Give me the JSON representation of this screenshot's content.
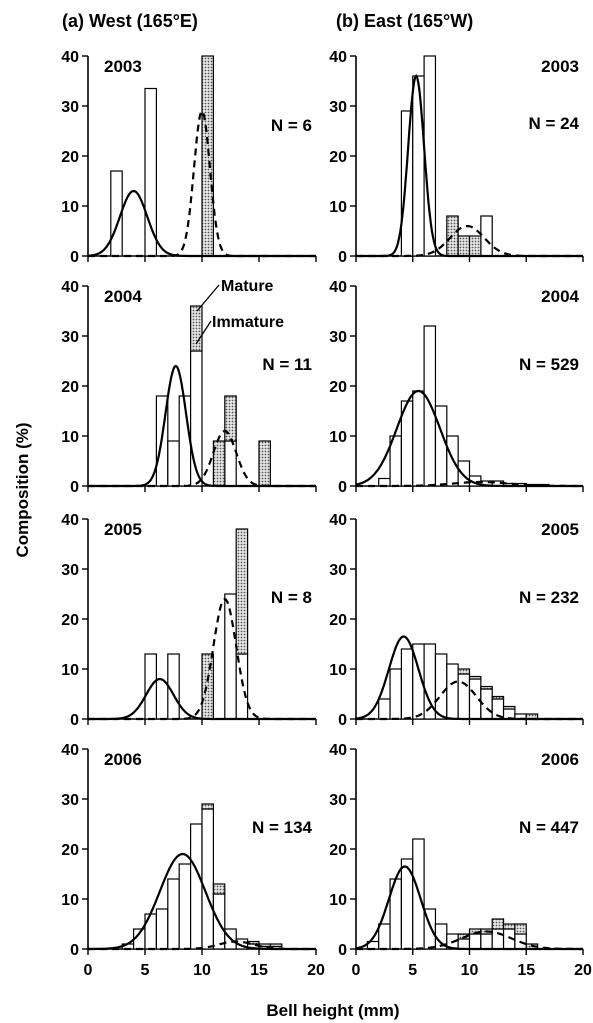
{
  "figure": {
    "ylabel": "Composition (%)",
    "xlabel": "Bell height (mm)",
    "legend": {
      "mature": "Mature",
      "immature": "Immature"
    }
  },
  "chart_data": [
    {
      "type": "bar",
      "title": "(a) West (165°E)",
      "year": "2003",
      "n_label": "N = 6",
      "bin_width_mm": 1,
      "xlim": [
        0,
        20
      ],
      "ylim": [
        0,
        40
      ],
      "xticks": [
        "0",
        "5",
        "10",
        "15",
        "20"
      ],
      "yticks": [
        "0",
        "10",
        "20",
        "30",
        "40"
      ],
      "series": [
        {
          "name": "Immature",
          "bins_start_mm": [
            2,
            5,
            9
          ],
          "values": [
            17,
            33.5,
            0
          ]
        },
        {
          "name": "Mature",
          "bins_start_mm": [
            10
          ],
          "values": [
            40
          ]
        }
      ],
      "curves": [
        {
          "style": "solid",
          "peak_x": 4,
          "peak_y": 13,
          "sd": 1.2
        },
        {
          "style": "dashed",
          "peak_x": 10,
          "peak_y": 29,
          "sd": 0.7
        }
      ]
    },
    {
      "type": "bar",
      "title": "(b) East (165°W)",
      "year": "2003",
      "n_label": "N = 24",
      "bin_width_mm": 1,
      "xlim": [
        0,
        20
      ],
      "ylim": [
        0,
        40
      ],
      "xticks": [],
      "yticks": [
        "0",
        "10",
        "20",
        "30",
        "40"
      ],
      "series": [
        {
          "name": "Immature",
          "bins_start_mm": [
            4,
            5,
            6,
            11
          ],
          "values": [
            29,
            36,
            40,
            8
          ]
        },
        {
          "name": "Mature",
          "bins_start_mm": [
            8,
            9,
            10
          ],
          "values": [
            8,
            4,
            4
          ]
        }
      ],
      "curves": [
        {
          "style": "solid",
          "peak_x": 5.3,
          "peak_y": 36,
          "sd": 0.7
        },
        {
          "style": "dashed",
          "peak_x": 9.8,
          "peak_y": 6,
          "sd": 1.5
        }
      ]
    },
    {
      "type": "bar",
      "year": "2004",
      "n_label": "N = 11",
      "bin_width_mm": 1,
      "xlim": [
        0,
        20
      ],
      "ylim": [
        0,
        40
      ],
      "yticks": [
        "0",
        "10",
        "20",
        "30",
        "40"
      ],
      "series": [
        {
          "name": "Immature",
          "bins_start_mm": [
            6,
            7,
            8,
            9,
            12
          ],
          "values": [
            18,
            9,
            18,
            27,
            9
          ]
        },
        {
          "name": "Mature",
          "bins_start_mm": [
            9,
            11,
            12,
            15
          ],
          "values": [
            9,
            9,
            9,
            9
          ]
        }
      ],
      "curves": [
        {
          "style": "solid",
          "peak_x": 7.7,
          "peak_y": 24,
          "sd": 0.9
        },
        {
          "style": "dashed",
          "peak_x": 12,
          "peak_y": 11,
          "sd": 1.0
        }
      ]
    },
    {
      "type": "bar",
      "year": "2004",
      "n_label": "N = 529",
      "bin_width_mm": 1,
      "xlim": [
        0,
        20
      ],
      "ylim": [
        0,
        40
      ],
      "yticks": [
        "0",
        "10",
        "20",
        "30",
        "40"
      ],
      "series": [
        {
          "name": "Immature",
          "bins_start_mm": [
            2,
            3,
            4,
            5,
            6,
            7,
            8,
            9,
            10,
            11,
            12,
            13,
            14,
            15,
            16
          ],
          "values": [
            1.5,
            10,
            17,
            19,
            32,
            16,
            10,
            5,
            2,
            1,
            1,
            0.5,
            0.5,
            0.3,
            0.3
          ]
        },
        {
          "name": "Mature",
          "bins_start_mm": [],
          "values": []
        }
      ],
      "curves": [
        {
          "style": "solid",
          "peak_x": 5.5,
          "peak_y": 19,
          "sd": 1.9
        },
        {
          "style": "dashed",
          "peak_x": 11,
          "peak_y": 0.8,
          "sd": 2.5
        }
      ]
    },
    {
      "type": "bar",
      "year": "2005",
      "n_label": "N = 8",
      "bin_width_mm": 1,
      "xlim": [
        0,
        20
      ],
      "ylim": [
        0,
        40
      ],
      "yticks": [
        "0",
        "10",
        "20",
        "30",
        "40"
      ],
      "series": [
        {
          "name": "Immature",
          "bins_start_mm": [
            5,
            7,
            10,
            12,
            13
          ],
          "values": [
            13,
            13,
            0,
            25,
            13
          ]
        },
        {
          "name": "Mature",
          "bins_start_mm": [
            10,
            13
          ],
          "values": [
            13,
            25
          ]
        }
      ],
      "curves": [
        {
          "style": "solid",
          "peak_x": 6.3,
          "peak_y": 8,
          "sd": 1.2
        },
        {
          "style": "dashed",
          "peak_x": 12,
          "peak_y": 24,
          "sd": 1.0
        }
      ]
    },
    {
      "type": "bar",
      "year": "2005",
      "n_label": "N = 232",
      "bin_width_mm": 1,
      "xlim": [
        0,
        20
      ],
      "ylim": [
        0,
        40
      ],
      "yticks": [
        "0",
        "10",
        "20",
        "30",
        "40"
      ],
      "series": [
        {
          "name": "Immature",
          "bins_start_mm": [
            2,
            3,
            4,
            5,
            6,
            7,
            8,
            9,
            10,
            11,
            12,
            13,
            14,
            15
          ],
          "values": [
            4,
            10,
            14,
            15,
            15,
            13,
            11,
            9,
            8,
            6,
            4,
            2,
            1,
            0
          ]
        },
        {
          "name": "Mature",
          "bins_start_mm": [
            9,
            10,
            11,
            12,
            13,
            15
          ],
          "values": [
            1,
            0.5,
            0.5,
            0.5,
            0.5,
            1
          ]
        }
      ],
      "curves": [
        {
          "style": "solid",
          "peak_x": 4.2,
          "peak_y": 16.5,
          "sd": 1.3
        },
        {
          "style": "dashed",
          "peak_x": 9,
          "peak_y": 7.5,
          "sd": 1.6
        }
      ]
    },
    {
      "type": "bar",
      "year": "2006",
      "n_label": "N = 134",
      "bin_width_mm": 1,
      "xlim": [
        0,
        20
      ],
      "ylim": [
        0,
        40
      ],
      "xlabels": [
        "0",
        "5",
        "10",
        "15",
        "20"
      ],
      "yticks": [
        "0",
        "10",
        "20",
        "30",
        "40"
      ],
      "series": [
        {
          "name": "Immature",
          "bins_start_mm": [
            3,
            4,
            5,
            6,
            7,
            8,
            9,
            10,
            11,
            12,
            13,
            14,
            15,
            16
          ],
          "values": [
            1,
            4,
            7,
            8,
            14,
            17,
            25,
            28,
            11,
            4,
            2,
            1,
            0.5,
            0.5
          ]
        },
        {
          "name": "Mature",
          "bins_start_mm": [
            10,
            11,
            14,
            15,
            16
          ],
          "values": [
            1,
            2,
            0.5,
            0.5,
            0.5
          ]
        }
      ],
      "curves": [
        {
          "style": "solid",
          "peak_x": 8.3,
          "peak_y": 19,
          "sd": 2.0
        },
        {
          "style": "dashed",
          "peak_x": 13,
          "peak_y": 1.5,
          "sd": 1.5
        }
      ]
    },
    {
      "type": "bar",
      "year": "2006",
      "n_label": "N = 447",
      "bin_width_mm": 1,
      "xlim": [
        0,
        20
      ],
      "ylim": [
        0,
        40
      ],
      "xlabels": [
        "0",
        "5",
        "10",
        "15",
        "20"
      ],
      "yticks": [
        "0",
        "10",
        "20",
        "30",
        "40"
      ],
      "series": [
        {
          "name": "Immature",
          "bins_start_mm": [
            1,
            2,
            3,
            4,
            5,
            6,
            7,
            8,
            9,
            10,
            11,
            12,
            13,
            14
          ],
          "values": [
            1.5,
            5,
            14,
            18,
            22,
            8,
            5,
            3,
            2,
            3,
            3,
            4,
            4,
            3
          ]
        },
        {
          "name": "Mature",
          "bins_start_mm": [
            9,
            10,
            11,
            12,
            13,
            14,
            15
          ],
          "values": [
            1,
            1,
            1,
            2,
            1,
            2,
            1
          ]
        }
      ],
      "curves": [
        {
          "style": "solid",
          "peak_x": 4.3,
          "peak_y": 16.5,
          "sd": 1.4
        },
        {
          "style": "dashed",
          "peak_x": 11.5,
          "peak_y": 3.5,
          "sd": 2.2
        }
      ]
    }
  ]
}
